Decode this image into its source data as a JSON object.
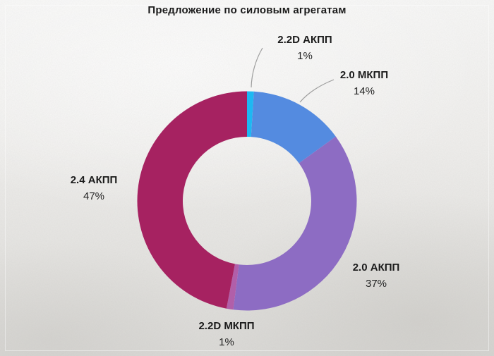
{
  "title": "Предложение по силовым агрегатам",
  "chart_data": {
    "type": "pie",
    "subtype": "donut",
    "title": "Предложение по силовым агрегатам",
    "unit": "%",
    "direction": "clockwise",
    "start_angle_deg": 0,
    "legend": "none",
    "labels_position": "outside",
    "slices": [
      {
        "label": "2.2D АКПП",
        "value": 1,
        "pct_label": "1%",
        "color": "#1db8f2"
      },
      {
        "label": "2.0 МКПП",
        "value": 14,
        "pct_label": "14%",
        "color": "#548be0"
      },
      {
        "label": "2.0 АКПП",
        "value": 37,
        "pct_label": "37%",
        "color": "#8d6cc3"
      },
      {
        "label": "2.2D МКПП",
        "value": 1,
        "pct_label": "1%",
        "color": "#b15fa9"
      },
      {
        "label": "2.4 АКПП",
        "value": 47,
        "pct_label": "47%",
        "color": "#a62261"
      }
    ],
    "colors": {
      "title_text": "#1b1b1b",
      "label_text": "#1b1b1b",
      "leader_line": "#9d9d9d",
      "background": "#e9e8e5"
    }
  }
}
